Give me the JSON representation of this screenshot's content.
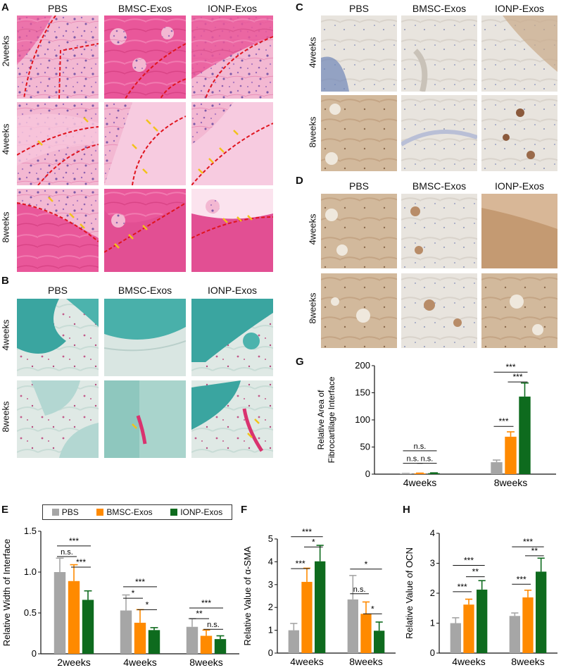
{
  "panels": {
    "A": {
      "letter": "A",
      "cols": [
        "PBS",
        "BMSC-Exos",
        "IONP-Exos"
      ],
      "rows": [
        "2weeks",
        "4weeks",
        "8weeks"
      ]
    },
    "B": {
      "letter": "B",
      "cols": [
        "PBS",
        "BMSC-Exos",
        "IONP-Exos"
      ],
      "rows": [
        "4weeks",
        "8weeks"
      ]
    },
    "C": {
      "letter": "C",
      "cols": [
        "PBS",
        "BMSC-Exos",
        "IONP-Exos"
      ],
      "rows": [
        "4weeks",
        "8weeks"
      ]
    },
    "D": {
      "letter": "D",
      "cols": [
        "PBS",
        "BMSC-Exos",
        "IONP-Exos"
      ],
      "rows": [
        "4weeks",
        "8weeks"
      ]
    }
  },
  "colors": {
    "pbs": "#a6a6a6",
    "bmsc": "#ff8a00",
    "ionp": "#0e6b1e"
  },
  "legend": {
    "pbs": "PBS",
    "bmsc": "BMSC-Exos",
    "ionp": "IONP-Exos"
  },
  "chart_data": [
    {
      "id": "E",
      "letter": "E",
      "type": "bar",
      "ylabel": "Relative Width of Interface",
      "categories": [
        "2weeks",
        "4weeks",
        "8weeks"
      ],
      "ylim": [
        0,
        1.5
      ],
      "yticks": [
        "0",
        "0.5",
        "1.0",
        "1.5"
      ],
      "yticks_values": [
        0,
        0.5,
        1.0,
        1.5
      ],
      "series": [
        {
          "name": "PBS",
          "values": [
            1.0,
            0.53,
            0.33
          ],
          "err": [
            0.17,
            0.19,
            0.1
          ]
        },
        {
          "name": "BMSC-Exos",
          "values": [
            0.89,
            0.38,
            0.22
          ],
          "err": [
            0.2,
            0.16,
            0.07
          ]
        },
        {
          "name": "IONP-Exos",
          "values": [
            0.66,
            0.29,
            0.18
          ],
          "err": [
            0.11,
            0.03,
            0.04
          ]
        }
      ],
      "annotations": [
        {
          "text": "***",
          "cat": 0,
          "from": 0,
          "to": 2,
          "y": 1.32
        },
        {
          "text": "n.s.",
          "cat": 0,
          "from": 0,
          "to": 1,
          "y": 1.19
        },
        {
          "text": "***",
          "cat": 0,
          "from": 1,
          "to": 2,
          "y": 1.06
        },
        {
          "text": "***",
          "cat": 1,
          "from": 0,
          "to": 2,
          "y": 0.82
        },
        {
          "text": "*",
          "cat": 1,
          "from": 0,
          "to": 1,
          "y": 0.68
        },
        {
          "text": "*",
          "cat": 1,
          "from": 1,
          "to": 2,
          "y": 0.54
        },
        {
          "text": "***",
          "cat": 2,
          "from": 0,
          "to": 2,
          "y": 0.56
        },
        {
          "text": "**",
          "cat": 2,
          "from": 0,
          "to": 1,
          "y": 0.43
        },
        {
          "text": "n.s.",
          "cat": 2,
          "from": 1,
          "to": 2,
          "y": 0.3
        }
      ]
    },
    {
      "id": "F",
      "letter": "F",
      "type": "bar",
      "ylabel": "Relative Value of α-SMA",
      "categories": [
        "4weeks",
        "8weeks"
      ],
      "ylim": [
        0,
        5
      ],
      "yticks": [
        "0",
        "1",
        "2",
        "3",
        "4",
        "5"
      ],
      "yticks_values": [
        0,
        1,
        2,
        3,
        4,
        5
      ],
      "series": [
        {
          "name": "PBS",
          "values": [
            1.0,
            2.35
          ],
          "err": [
            0.3,
            1.05
          ]
        },
        {
          "name": "BMSC-Exos",
          "values": [
            3.12,
            1.72
          ],
          "err": [
            0.6,
            0.52
          ]
        },
        {
          "name": "IONP-Exos",
          "values": [
            4.02,
            0.98
          ],
          "err": [
            0.7,
            0.38
          ]
        }
      ],
      "annotations": [
        {
          "text": "***",
          "cat": 0,
          "from": 0,
          "to": 2,
          "y": 5.1
        },
        {
          "text": "*",
          "cat": 0,
          "from": 1,
          "to": 2,
          "y": 4.65
        },
        {
          "text": "***",
          "cat": 0,
          "from": 0,
          "to": 1,
          "y": 3.7
        },
        {
          "text": "*",
          "cat": 1,
          "from": 0,
          "to": 2,
          "y": 3.68
        },
        {
          "text": "n.s.",
          "cat": 1,
          "from": 0,
          "to": 1,
          "y": 2.6
        },
        {
          "text": "*",
          "cat": 1,
          "from": 1,
          "to": 2,
          "y": 1.72
        }
      ]
    },
    {
      "id": "G",
      "letter": "G",
      "type": "bar",
      "ylabel": "Relative Area of Fibrocartilage Interface",
      "categories": [
        "4weeks",
        "8weeks"
      ],
      "ylim": [
        0,
        200
      ],
      "yticks": [
        "0",
        "50",
        "100",
        "150",
        "200"
      ],
      "yticks_values": [
        0,
        50,
        100,
        150,
        200
      ],
      "series": [
        {
          "name": "PBS",
          "values": [
            1,
            22
          ],
          "err": [
            0.3,
            4
          ]
        },
        {
          "name": "BMSC-Exos",
          "values": [
            1.4,
            69
          ],
          "err": [
            0.5,
            9
          ]
        },
        {
          "name": "IONP-Exos",
          "values": [
            1.8,
            143
          ],
          "err": [
            0.6,
            25
          ]
        }
      ],
      "annotations": [
        {
          "text": "n.s.",
          "cat": 0,
          "from": 0,
          "to": 2,
          "y": 43
        },
        {
          "text": "n.s.",
          "cat": 0,
          "from": 0,
          "to": 1,
          "y": 20
        },
        {
          "text": "n.s.",
          "cat": 0,
          "from": 1,
          "to": 2,
          "y": 20
        },
        {
          "text": "***",
          "cat": 1,
          "from": 0,
          "to": 2,
          "y": 188
        },
        {
          "text": "***",
          "cat": 1,
          "from": 1,
          "to": 2,
          "y": 170
        },
        {
          "text": "***",
          "cat": 1,
          "from": 0,
          "to": 1,
          "y": 88
        }
      ]
    },
    {
      "id": "H",
      "letter": "H",
      "type": "bar",
      "ylabel": "Relative Value of OCN",
      "categories": [
        "4weeks",
        "8weeks"
      ],
      "ylim": [
        0,
        4
      ],
      "yticks": [
        "0",
        "1",
        "2",
        "3",
        "4"
      ],
      "yticks_values": [
        0,
        1,
        2,
        3,
        4
      ],
      "series": [
        {
          "name": "PBS",
          "values": [
            1.0,
            1.24
          ],
          "err": [
            0.18,
            0.1
          ]
        },
        {
          "name": "BMSC-Exos",
          "values": [
            1.62,
            1.86
          ],
          "err": [
            0.18,
            0.24
          ]
        },
        {
          "name": "IONP-Exos",
          "values": [
            2.12,
            2.72
          ],
          "err": [
            0.3,
            0.45
          ]
        }
      ],
      "annotations": [
        {
          "text": "***",
          "cat": 0,
          "from": 0,
          "to": 2,
          "y": 2.93
        },
        {
          "text": "**",
          "cat": 0,
          "from": 1,
          "to": 2,
          "y": 2.55
        },
        {
          "text": "***",
          "cat": 0,
          "from": 0,
          "to": 1,
          "y": 2.05
        },
        {
          "text": "***",
          "cat": 1,
          "from": 0,
          "to": 2,
          "y": 3.55
        },
        {
          "text": "**",
          "cat": 1,
          "from": 1,
          "to": 2,
          "y": 3.25
        },
        {
          "text": "***",
          "cat": 1,
          "from": 0,
          "to": 1,
          "y": 2.3
        }
      ]
    }
  ]
}
